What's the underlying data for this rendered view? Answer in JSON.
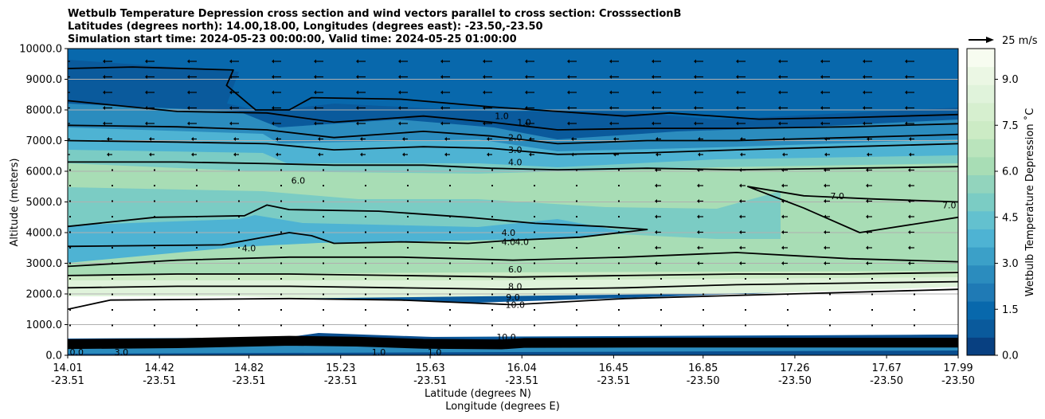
{
  "chart_data": {
    "type": "contour",
    "title_lines": [
      "Wetbulb Temperature Depression cross section and wind vectors parallel to cross section: CrosssectionB",
      "Latitudes (degrees north): 14.00,18.00, Longitudes (degrees east): -23.50,-23.50",
      "Simulation start time: 2024-05-23 00:00:00, Valid time: 2024-05-25 01:00:00"
    ],
    "xlabel_lat": "Latitude (degrees N)",
    "xlabel_lon": "Longitude (degrees E)",
    "ylabel": "Altitude (meters)",
    "ylim": [
      0,
      10000
    ],
    "y_ticks": [
      {
        "value": 0,
        "label": "0.0"
      },
      {
        "value": 1000,
        "label": "1000.0"
      },
      {
        "value": 2000,
        "label": "2000.0"
      },
      {
        "value": 3000,
        "label": "3000.0"
      },
      {
        "value": 4000,
        "label": "4000.0"
      },
      {
        "value": 5000,
        "label": "5000.0"
      },
      {
        "value": 6000,
        "label": "6000.0"
      },
      {
        "value": 7000,
        "label": "7000.0"
      },
      {
        "value": 8000,
        "label": "8000.0"
      },
      {
        "value": 9000,
        "label": "9000.0"
      },
      {
        "value": 10000,
        "label": "10000.0"
      }
    ],
    "xlim": [
      14.01,
      17.99
    ],
    "x_ticks": [
      {
        "lat": 14.01,
        "lat_label": "14.01",
        "lon_label": "-23.51"
      },
      {
        "lat": 14.42,
        "lat_label": "14.42",
        "lon_label": "-23.51"
      },
      {
        "lat": 14.82,
        "lat_label": "14.82",
        "lon_label": "-23.51"
      },
      {
        "lat": 15.23,
        "lat_label": "15.23",
        "lon_label": "-23.51"
      },
      {
        "lat": 15.63,
        "lat_label": "15.63",
        "lon_label": "-23.51"
      },
      {
        "lat": 16.04,
        "lat_label": "16.04",
        "lon_label": "-23.51"
      },
      {
        "lat": 16.45,
        "lat_label": "16.45",
        "lon_label": "-23.51"
      },
      {
        "lat": 16.85,
        "lat_label": "16.85",
        "lon_label": "-23.50"
      },
      {
        "lat": 17.26,
        "lat_label": "17.26",
        "lon_label": "-23.50"
      },
      {
        "lat": 17.67,
        "lat_label": "17.67",
        "lon_label": "-23.50"
      },
      {
        "lat": 17.99,
        "lat_label": "17.99",
        "lon_label": "-23.50"
      }
    ],
    "colorbar": {
      "label": "Wetbulb Temperature Depression ˚C",
      "range": [
        0,
        10
      ],
      "ticks": [
        {
          "value": 0,
          "label": "0.0"
        },
        {
          "value": 1.5,
          "label": "1.5"
        },
        {
          "value": 3,
          "label": "3.0"
        },
        {
          "value": 4.5,
          "label": "4.5"
        },
        {
          "value": 6,
          "label": "6.0"
        },
        {
          "value": 7.5,
          "label": "7.5"
        },
        {
          "value": 9,
          "label": "9.0"
        }
      ]
    },
    "quiver_key": "25 m/s",
    "contours": [
      {
        "value": 1.0,
        "label": "1.0",
        "points": [
          [
            14.01,
            9350
          ],
          [
            14.3,
            9400
          ],
          [
            14.75,
            9300
          ],
          [
            14.72,
            8800
          ],
          [
            14.85,
            8000
          ],
          [
            15.0,
            8000
          ],
          [
            15.1,
            8400
          ],
          [
            15.5,
            8350
          ],
          [
            15.9,
            8100
          ],
          [
            16.3,
            7900
          ],
          [
            16.5,
            7800
          ],
          [
            16.7,
            7900
          ],
          [
            17.1,
            7700
          ],
          [
            17.5,
            7750
          ],
          [
            17.99,
            7850
          ]
        ]
      },
      {
        "value": 1.0,
        "label": "1.0",
        "points": [
          [
            14.01,
            8300
          ],
          [
            14.5,
            7950
          ],
          [
            14.9,
            7900
          ],
          [
            15.2,
            7600
          ],
          [
            15.6,
            7800
          ],
          [
            15.9,
            7600
          ],
          [
            16.2,
            7350
          ],
          [
            16.6,
            7400
          ],
          [
            17.0,
            7400
          ],
          [
            17.5,
            7450
          ],
          [
            17.99,
            7550
          ]
        ]
      },
      {
        "value": 2.0,
        "label": "2.0",
        "points": [
          [
            14.01,
            7500
          ],
          [
            14.5,
            7450
          ],
          [
            14.9,
            7350
          ],
          [
            15.2,
            7100
          ],
          [
            15.6,
            7300
          ],
          [
            15.9,
            7150
          ],
          [
            16.2,
            6900
          ],
          [
            16.6,
            7000
          ],
          [
            17.0,
            7000
          ],
          [
            17.5,
            7100
          ],
          [
            17.99,
            7200
          ]
        ]
      },
      {
        "value": 3.0,
        "label": "3.0",
        "points": [
          [
            14.01,
            7000
          ],
          [
            14.5,
            6950
          ],
          [
            14.9,
            6900
          ],
          [
            15.2,
            6700
          ],
          [
            15.6,
            6800
          ],
          [
            15.9,
            6750
          ],
          [
            16.2,
            6550
          ],
          [
            16.6,
            6600
          ],
          [
            17.0,
            6700
          ],
          [
            17.5,
            6800
          ],
          [
            17.99,
            6900
          ]
        ]
      },
      {
        "value": 4.0,
        "label": "4.0",
        "points": [
          [
            14.01,
            6300
          ],
          [
            14.5,
            6300
          ],
          [
            14.9,
            6250
          ],
          [
            15.2,
            6200
          ],
          [
            15.6,
            6200
          ],
          [
            15.9,
            6100
          ],
          [
            16.2,
            6050
          ],
          [
            16.6,
            6100
          ],
          [
            17.0,
            6050
          ],
          [
            17.5,
            6100
          ],
          [
            17.99,
            6150
          ]
        ]
      },
      {
        "value": 4.0,
        "label": "4.0",
        "points": [
          [
            14.01,
            4200
          ],
          [
            14.4,
            4500
          ],
          [
            14.8,
            4550
          ],
          [
            14.9,
            4900
          ],
          [
            15.0,
            4750
          ],
          [
            15.4,
            4700
          ],
          [
            15.8,
            4500
          ],
          [
            16.1,
            4300
          ],
          [
            16.4,
            4200
          ],
          [
            16.6,
            4100
          ],
          [
            16.3,
            3850
          ],
          [
            16.0,
            3750
          ],
          [
            15.8,
            3650
          ],
          [
            15.5,
            3700
          ],
          [
            15.2,
            3650
          ],
          [
            15.1,
            3900
          ],
          [
            15.0,
            4000
          ],
          [
            14.7,
            3600
          ],
          [
            14.01,
            3550
          ]
        ]
      },
      {
        "value": 6.0,
        "label": "6.0",
        "points": [
          [
            14.01,
            2900
          ],
          [
            14.5,
            3100
          ],
          [
            15.0,
            3200
          ],
          [
            15.5,
            3200
          ],
          [
            16.0,
            3100
          ],
          [
            16.5,
            3200
          ],
          [
            17.0,
            3350
          ],
          [
            17.5,
            3150
          ],
          [
            17.99,
            3050
          ]
        ]
      },
      {
        "value": 8.0,
        "label": "8.0",
        "points": [
          [
            14.01,
            2600
          ],
          [
            14.5,
            2650
          ],
          [
            15.0,
            2650
          ],
          [
            15.5,
            2600
          ],
          [
            16.0,
            2550
          ],
          [
            16.5,
            2600
          ],
          [
            17.0,
            2650
          ],
          [
            17.5,
            2650
          ],
          [
            17.99,
            2700
          ]
        ]
      },
      {
        "value": 9.0,
        "label": "9.0",
        "points": [
          [
            14.01,
            2200
          ],
          [
            14.5,
            2250
          ],
          [
            15.0,
            2250
          ],
          [
            15.5,
            2200
          ],
          [
            16.0,
            2150
          ],
          [
            16.5,
            2200
          ],
          [
            17.0,
            2300
          ],
          [
            17.99,
            2400
          ]
        ]
      },
      {
        "value": 10.0,
        "label": "10.0",
        "points": [
          [
            14.01,
            1500
          ],
          [
            14.2,
            1800
          ],
          [
            15.0,
            1850
          ],
          [
            15.5,
            1800
          ],
          [
            16.0,
            1650
          ],
          [
            16.5,
            1850
          ],
          [
            17.0,
            1950
          ],
          [
            17.99,
            2150
          ]
        ]
      },
      {
        "value": 7.0,
        "label": "7.0",
        "points": [
          [
            17.99,
            5000
          ],
          [
            17.6,
            5100
          ],
          [
            17.3,
            5200
          ],
          [
            17.05,
            5500
          ],
          [
            17.3,
            4800
          ],
          [
            17.55,
            4000
          ],
          [
            17.99,
            4500
          ]
        ]
      }
    ],
    "contour_labels": [
      {
        "text": "1.0",
        "lat": 15.95,
        "alt": 7800
      },
      {
        "text": "1.0",
        "lat": 16.05,
        "alt": 7600
      },
      {
        "text": "2.0",
        "lat": 16.01,
        "alt": 7100
      },
      {
        "text": "3.0",
        "lat": 16.01,
        "alt": 6700
      },
      {
        "text": "4.0",
        "lat": 16.01,
        "alt": 6300
      },
      {
        "text": "6.0",
        "lat": 15.04,
        "alt": 5700
      },
      {
        "text": "4.0",
        "lat": 15.98,
        "alt": 4000
      },
      {
        "text": "4.0",
        "lat": 15.98,
        "alt": 3700
      },
      {
        "text": "4.0",
        "lat": 16.04,
        "alt": 3700
      },
      {
        "text": "4.0",
        "lat": 14.82,
        "alt": 3500
      },
      {
        "text": "6.0",
        "lat": 16.01,
        "alt": 2800
      },
      {
        "text": "8.0",
        "lat": 16.01,
        "alt": 2250
      },
      {
        "text": "9.0",
        "lat": 16.0,
        "alt": 1900
      },
      {
        "text": "10.0",
        "lat": 16.01,
        "alt": 1650
      },
      {
        "text": "7.0",
        "lat": 17.45,
        "alt": 5200
      },
      {
        "text": "7.0",
        "lat": 17.95,
        "alt": 4900
      },
      {
        "text": "10.0",
        "lat": 15.97,
        "alt": 600
      },
      {
        "text": "1.0",
        "lat": 15.65,
        "alt": 100
      },
      {
        "text": "1.0",
        "lat": 15.4,
        "alt": 100
      },
      {
        "text": "3.0",
        "lat": 14.25,
        "alt": 100
      },
      {
        "text": "0.0",
        "lat": 14.05,
        "alt": 100
      }
    ]
  }
}
